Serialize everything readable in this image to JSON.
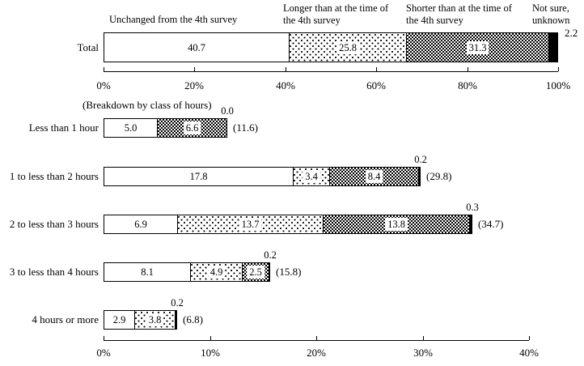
{
  "legend": {
    "unchanged": "Unchanged from the 4th survey",
    "longer": "Longer than at the time of\nthe 4th survey",
    "shorter": "Shorter than at the time of\nthe 4th survey",
    "notsure": "Not sure,\nunknown"
  },
  "breakdown_heading": "(Breakdown by class of hours)",
  "colors": {
    "background": "#ffffff",
    "bar_border": "#000000",
    "fill_unchanged": "#ffffff",
    "fill_notsure": "#000000",
    "pattern_ink": "#000000"
  },
  "chart_data": {
    "type": "bar",
    "orientation": "horizontal_stacked",
    "grid": false,
    "series_names": [
      "Unchanged from the 4th survey",
      "Longer than at the time of the 4th survey",
      "Shorter than at the time of the 4th survey",
      "Not sure, unknown"
    ],
    "total_chart": {
      "category": "Total",
      "values": [
        40.7,
        25.8,
        31.3,
        2.2
      ],
      "segment_labels": [
        "40.7",
        "25.8",
        "31.3",
        ""
      ],
      "outside_label": "2.2",
      "axis_range": [
        0,
        100
      ],
      "axis_ticks": [
        {
          "pct": 0,
          "label": "0%"
        },
        {
          "pct": 20,
          "label": "20%"
        },
        {
          "pct": 40,
          "label": "40%"
        },
        {
          "pct": 60,
          "label": "60%"
        },
        {
          "pct": 80,
          "label": "80%"
        },
        {
          "pct": 100,
          "label": "100%"
        }
      ]
    },
    "breakdown_chart": {
      "rows": [
        {
          "category": "Less than 1 hour",
          "values": [
            5.0,
            0.0,
            6.6,
            0.0
          ],
          "segment_labels": [
            "5.0",
            "",
            "6.6",
            ""
          ],
          "notsure_label": "0.0",
          "total_label": "(11.6)"
        },
        {
          "category": "1 to less than 2 hours",
          "values": [
            17.8,
            3.4,
            8.4,
            0.2
          ],
          "segment_labels": [
            "17.8",
            "3.4",
            "8.4",
            ""
          ],
          "notsure_label": "0.2",
          "total_label": "(29.8)"
        },
        {
          "category": "2 to less than 3 hours",
          "values": [
            6.9,
            13.7,
            13.8,
            0.3
          ],
          "segment_labels": [
            "6.9",
            "13.7",
            "13.8",
            ""
          ],
          "notsure_label": "0.3",
          "total_label": "(34.7)"
        },
        {
          "category": "3 to less than 4 hours",
          "values": [
            8.1,
            4.9,
            2.5,
            0.2
          ],
          "segment_labels": [
            "8.1",
            "4.9",
            "2.5",
            ""
          ],
          "notsure_label": "0.2",
          "total_label": "(15.8)"
        },
        {
          "category": "4 hours or more",
          "values": [
            2.9,
            3.8,
            0.0,
            0.2
          ],
          "segment_labels": [
            "2.9",
            "3.8",
            "",
            ""
          ],
          "notsure_label": "0.2",
          "total_label": "(6.8)"
        }
      ],
      "axis_range": [
        0,
        40
      ],
      "axis_ticks": [
        {
          "pct": 0,
          "label": "0%"
        },
        {
          "pct": 10,
          "label": "10%"
        },
        {
          "pct": 20,
          "label": "20%"
        },
        {
          "pct": 30,
          "label": "30%"
        },
        {
          "pct": 40,
          "label": "40%"
        }
      ]
    }
  }
}
